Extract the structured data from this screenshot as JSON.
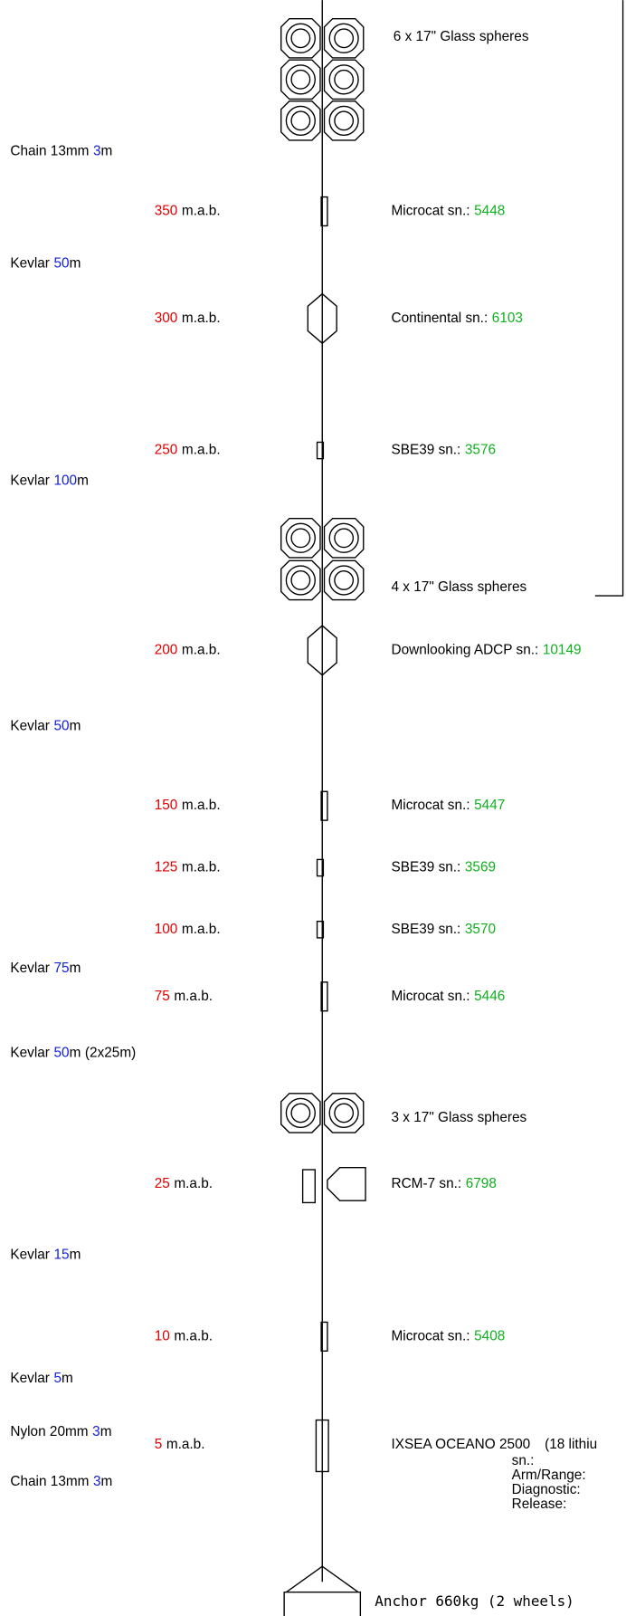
{
  "length_unit": "m",
  "depth_unit": "m.a.b.",
  "floats": [
    "6 x 17\" Glass spheres",
    "4 x 17\" Glass spheres",
    "3 x 17\" Glass spheres"
  ],
  "lines": [
    {
      "material": "Chain 13mm",
      "length": 3
    },
    {
      "material": "Kevlar",
      "length": 50
    },
    {
      "material": "Kevlar",
      "length": 100
    },
    {
      "material": "Kevlar",
      "length": 50
    },
    {
      "material": "Kevlar",
      "length": 75
    },
    {
      "material": "Kevlar",
      "length": 50,
      "note": "(2x25m)"
    },
    {
      "material": "Kevlar",
      "length": 15
    },
    {
      "material": "Kevlar",
      "length": 5
    },
    {
      "material": "Nylon 20mm",
      "length": 3
    },
    {
      "material": "Chain 13mm",
      "length": 3
    }
  ],
  "instruments": [
    {
      "depth": 350,
      "name": "Microcat sn.:",
      "serial": "5448"
    },
    {
      "depth": 300,
      "name": "Continental sn.:",
      "serial": "6103"
    },
    {
      "depth": 250,
      "name": "SBE39 sn.:",
      "serial": "3576"
    },
    {
      "depth": 200,
      "name": "Downlooking ADCP sn.:",
      "serial": "10149"
    },
    {
      "depth": 150,
      "name": "Microcat sn.:",
      "serial": "5447"
    },
    {
      "depth": 125,
      "name": "SBE39 sn.:",
      "serial": "3569"
    },
    {
      "depth": 100,
      "name": "SBE39 sn.:",
      "serial": "3570"
    },
    {
      "depth": 75,
      "name": "Microcat sn.:",
      "serial": "5446"
    },
    {
      "depth": 25,
      "name": "RCM-7 sn.:",
      "serial": "6798"
    },
    {
      "depth": 10,
      "name": "Microcat sn.:",
      "serial": "5408"
    },
    {
      "depth": 5,
      "name": "IXSEA OCEANO 2500",
      "note": "(18 lithiu",
      "fields": [
        "sn.:",
        "Arm/Range:",
        "Diagnostic:",
        "Release:"
      ]
    }
  ],
  "anchor": "Anchor 660kg (2 wheels)"
}
